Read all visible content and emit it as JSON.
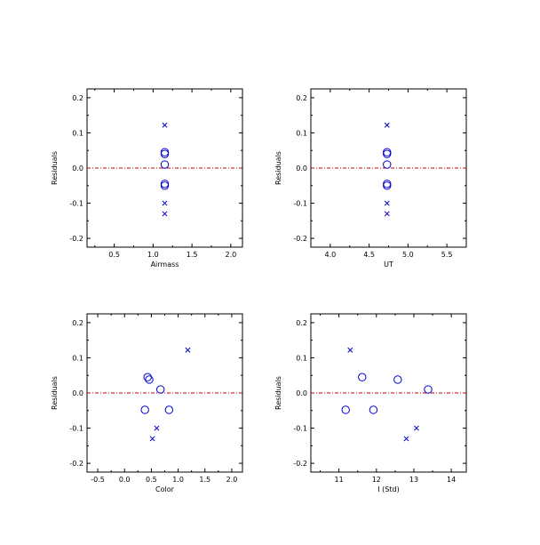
{
  "colors": {
    "frame": "#000000",
    "points": "#0000cc",
    "zero_line": "#cc0000"
  },
  "chart_data": [
    {
      "type": "scatter",
      "xlabel": "Airmass",
      "ylabel": "Residuals",
      "xlim": [
        0.15,
        2.15
      ],
      "ylim": [
        -0.225,
        0.225
      ],
      "xticks": [
        "0.5",
        "1.0",
        "1.5",
        "2.0"
      ],
      "yticks": [
        "-0.2",
        "-0.1",
        "0.0",
        "0.1",
        "0.2"
      ],
      "zero_line": 0.0,
      "series": [
        {
          "marker": "circle",
          "points": [
            [
              1.15,
              0.045
            ],
            [
              1.15,
              0.04
            ],
            [
              1.15,
              0.01
            ],
            [
              1.15,
              -0.045
            ],
            [
              1.15,
              -0.05
            ]
          ]
        },
        {
          "marker": "cross",
          "points": [
            [
              1.15,
              0.122
            ],
            [
              1.15,
              -0.1
            ],
            [
              1.15,
              -0.13
            ]
          ]
        }
      ]
    },
    {
      "type": "scatter",
      "xlabel": "UT",
      "ylabel": "Residuals",
      "xlim": [
        3.75,
        5.75
      ],
      "ylim": [
        -0.225,
        0.225
      ],
      "xticks": [
        "4.0",
        "4.5",
        "5.0",
        "5.5"
      ],
      "yticks": [
        "-0.2",
        "-0.1",
        "0.0",
        "0.1",
        "0.2"
      ],
      "zero_line": 0.0,
      "series": [
        {
          "marker": "circle",
          "points": [
            [
              4.73,
              0.045
            ],
            [
              4.73,
              0.04
            ],
            [
              4.73,
              0.01
            ],
            [
              4.73,
              -0.045
            ],
            [
              4.73,
              -0.05
            ]
          ]
        },
        {
          "marker": "cross",
          "points": [
            [
              4.73,
              0.122
            ],
            [
              4.73,
              -0.1
            ],
            [
              4.73,
              -0.13
            ]
          ]
        }
      ]
    },
    {
      "type": "scatter",
      "xlabel": "Color",
      "ylabel": "Residuals",
      "xlim": [
        -0.7,
        2.2
      ],
      "ylim": [
        -0.225,
        0.225
      ],
      "xticks": [
        "-0.5",
        "0.0",
        "0.5",
        "1.0",
        "1.5",
        "2.0"
      ],
      "yticks": [
        "-0.2",
        "-0.1",
        "0.0",
        "0.1",
        "0.2"
      ],
      "zero_line": 0.0,
      "series": [
        {
          "marker": "circle",
          "points": [
            [
              0.43,
              0.045
            ],
            [
              0.46,
              0.038
            ],
            [
              0.67,
              0.01
            ],
            [
              0.38,
              -0.048
            ],
            [
              0.83,
              -0.048
            ]
          ]
        },
        {
          "marker": "cross",
          "points": [
            [
              1.18,
              0.122
            ],
            [
              0.6,
              -0.1
            ],
            [
              0.52,
              -0.13
            ]
          ]
        }
      ]
    },
    {
      "type": "scatter",
      "xlabel": "I (Std)",
      "ylabel": "Residuals",
      "xlim": [
        10.25,
        14.4
      ],
      "ylim": [
        -0.225,
        0.225
      ],
      "xticks": [
        "11",
        "12",
        "13",
        "14"
      ],
      "yticks": [
        "-0.2",
        "-0.1",
        "0.0",
        "0.1",
        "0.2"
      ],
      "zero_line": 0.0,
      "series": [
        {
          "marker": "circle",
          "points": [
            [
              11.62,
              0.045
            ],
            [
              12.57,
              0.038
            ],
            [
              13.38,
              0.01
            ],
            [
              11.18,
              -0.048
            ],
            [
              11.92,
              -0.048
            ]
          ]
        },
        {
          "marker": "cross",
          "points": [
            [
              11.3,
              0.122
            ],
            [
              13.07,
              -0.1
            ],
            [
              12.8,
              -0.13
            ]
          ]
        }
      ]
    }
  ]
}
